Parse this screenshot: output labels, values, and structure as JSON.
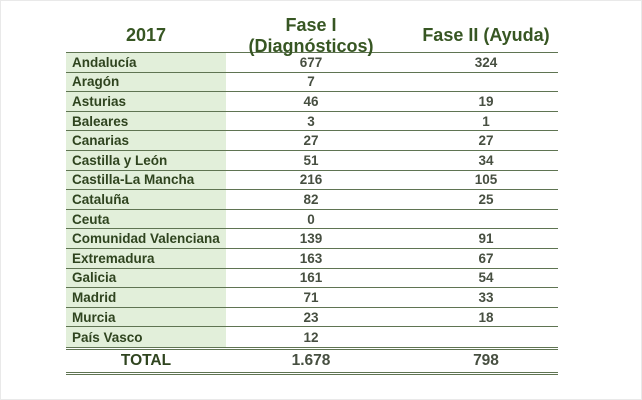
{
  "table": {
    "year_header": "2017",
    "fase1_header": "Fase I (Diagnósticos)",
    "fase2_header": "Fase II (Ayuda)",
    "rows": [
      {
        "region": "Andalucía",
        "fase1": "677",
        "fase2": "324"
      },
      {
        "region": "Aragón",
        "fase1": "7",
        "fase2": ""
      },
      {
        "region": "Asturias",
        "fase1": "46",
        "fase2": "19"
      },
      {
        "region": "Baleares",
        "fase1": "3",
        "fase2": "1"
      },
      {
        "region": "Canarias",
        "fase1": "27",
        "fase2": "27"
      },
      {
        "region": "Castilla y León",
        "fase1": "51",
        "fase2": "34"
      },
      {
        "region": "Castilla-La Mancha",
        "fase1": "216",
        "fase2": "105"
      },
      {
        "region": "Cataluña",
        "fase1": "82",
        "fase2": "25"
      },
      {
        "region": "Ceuta",
        "fase1": "0",
        "fase2": ""
      },
      {
        "region": "Comunidad Valenciana",
        "fase1": "139",
        "fase2": "91"
      },
      {
        "region": "Extremadura",
        "fase1": "163",
        "fase2": "67"
      },
      {
        "region": "Galicia",
        "fase1": "161",
        "fase2": "54"
      },
      {
        "region": "Madrid",
        "fase1": "71",
        "fase2": "33"
      },
      {
        "region": "Murcia",
        "fase1": "23",
        "fase2": "18"
      },
      {
        "region": "País Vasco",
        "fase1": "12",
        "fase2": ""
      }
    ],
    "total_label": "TOTAL",
    "totals": {
      "fase1": "1.678",
      "fase2": "798"
    }
  },
  "colors": {
    "header-text": "#375623",
    "region-text": "#2f441f",
    "number-text": "#474f41",
    "border": "#5f7452",
    "region-bg": "#e2efda"
  },
  "chart_data": {
    "type": "table",
    "title": "2017",
    "columns": [
      "2017",
      "Fase I (Diagnósticos)",
      "Fase II (Ayuda)"
    ],
    "rows": [
      [
        "Andalucía",
        677,
        324
      ],
      [
        "Aragón",
        7,
        null
      ],
      [
        "Asturias",
        46,
        19
      ],
      [
        "Baleares",
        3,
        1
      ],
      [
        "Canarias",
        27,
        27
      ],
      [
        "Castilla y León",
        51,
        34
      ],
      [
        "Castilla-La Mancha",
        216,
        105
      ],
      [
        "Cataluña",
        82,
        25
      ],
      [
        "Ceuta",
        0,
        null
      ],
      [
        "Comunidad Valenciana",
        139,
        91
      ],
      [
        "Extremadura",
        163,
        67
      ],
      [
        "Galicia",
        161,
        54
      ],
      [
        "Madrid",
        71,
        33
      ],
      [
        "Murcia",
        23,
        18
      ],
      [
        "País Vasco",
        12,
        null
      ]
    ],
    "totals_row": [
      "TOTAL",
      1678,
      798
    ],
    "notes": "Totals displayed with Spanish thousands separator: 1.678"
  }
}
